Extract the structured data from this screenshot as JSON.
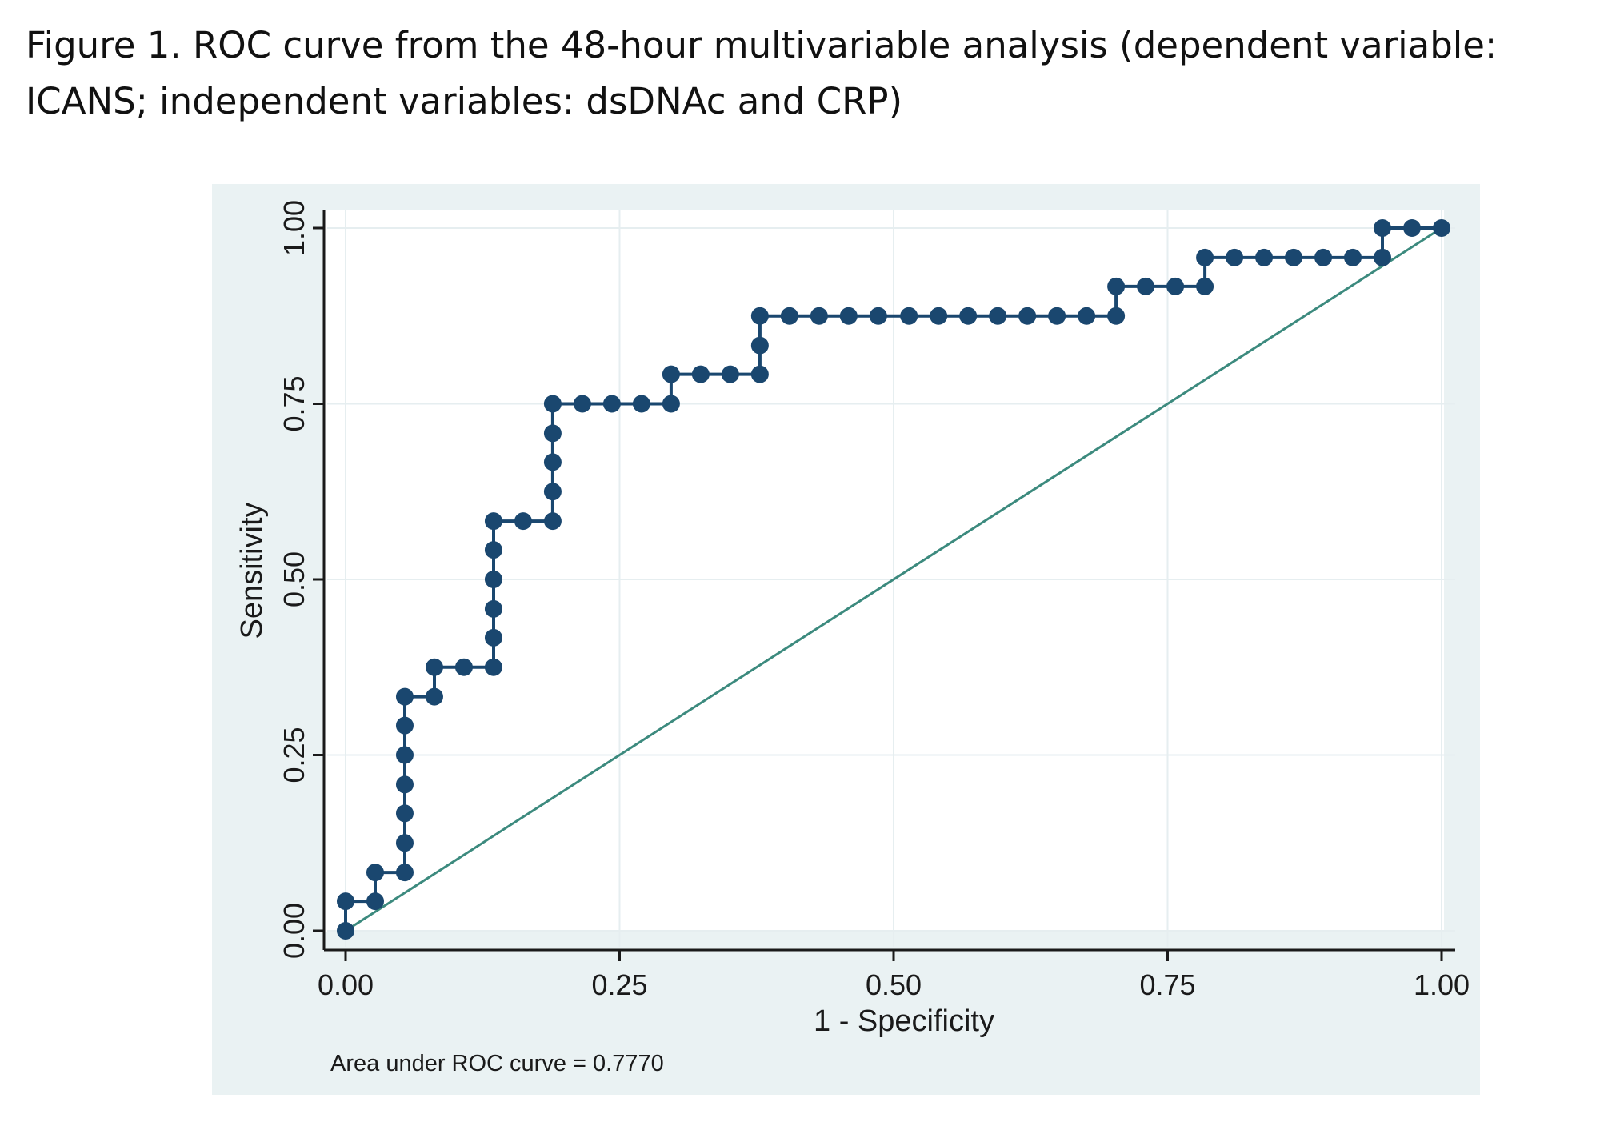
{
  "caption": "Figure 1. ROC curve from the 48-hour multivariable analysis (dependent variable: ICANS; independent variables: dsDNAc and CRP)",
  "colors": {
    "panel_background": "#eaf2f3",
    "plot_background": "#ffffff",
    "roc_curve": "#1a476f",
    "reference_line": "#3c8a7e",
    "grid": "#e6eef0",
    "axis": "#1a1a1a"
  },
  "chart_data": {
    "type": "line",
    "title": "",
    "xlabel": "1 - Specificity",
    "ylabel": "Sensitivity",
    "xlim": [
      0,
      1
    ],
    "ylim": [
      0,
      1
    ],
    "x_ticks": [
      "0.00",
      "0.25",
      "0.50",
      "0.75",
      "1.00"
    ],
    "y_ticks": [
      "0.00",
      "0.25",
      "0.50",
      "0.75",
      "1.00"
    ],
    "grid": true,
    "legend": "none",
    "note": "Area under ROC curve = 0.7770",
    "series": [
      {
        "kind": "step-line-with-markers",
        "points": [
          [
            0.0,
            0.0
          ],
          [
            0.0,
            0.042
          ],
          [
            0.027,
            0.042
          ],
          [
            0.027,
            0.083
          ],
          [
            0.054,
            0.083
          ],
          [
            0.054,
            0.125
          ],
          [
            0.054,
            0.167
          ],
          [
            0.054,
            0.208
          ],
          [
            0.054,
            0.25
          ],
          [
            0.054,
            0.292
          ],
          [
            0.054,
            0.333
          ],
          [
            0.081,
            0.333
          ],
          [
            0.081,
            0.375
          ],
          [
            0.108,
            0.375
          ],
          [
            0.135,
            0.375
          ],
          [
            0.135,
            0.417
          ],
          [
            0.135,
            0.458
          ],
          [
            0.135,
            0.5
          ],
          [
            0.135,
            0.542
          ],
          [
            0.135,
            0.583
          ],
          [
            0.162,
            0.583
          ],
          [
            0.189,
            0.583
          ],
          [
            0.189,
            0.625
          ],
          [
            0.189,
            0.667
          ],
          [
            0.189,
            0.708
          ],
          [
            0.189,
            0.75
          ],
          [
            0.216,
            0.75
          ],
          [
            0.243,
            0.75
          ],
          [
            0.27,
            0.75
          ],
          [
            0.297,
            0.75
          ],
          [
            0.297,
            0.792
          ],
          [
            0.324,
            0.792
          ],
          [
            0.351,
            0.792
          ],
          [
            0.378,
            0.792
          ],
          [
            0.378,
            0.833
          ],
          [
            0.378,
            0.875
          ],
          [
            0.405,
            0.875
          ],
          [
            0.432,
            0.875
          ],
          [
            0.459,
            0.875
          ],
          [
            0.486,
            0.875
          ],
          [
            0.514,
            0.875
          ],
          [
            0.541,
            0.875
          ],
          [
            0.568,
            0.875
          ],
          [
            0.595,
            0.875
          ],
          [
            0.622,
            0.875
          ],
          [
            0.649,
            0.875
          ],
          [
            0.676,
            0.875
          ],
          [
            0.703,
            0.875
          ],
          [
            0.703,
            0.917
          ],
          [
            0.73,
            0.917
          ],
          [
            0.757,
            0.917
          ],
          [
            0.784,
            0.917
          ],
          [
            0.784,
            0.958
          ],
          [
            0.811,
            0.958
          ],
          [
            0.838,
            0.958
          ],
          [
            0.865,
            0.958
          ],
          [
            0.892,
            0.958
          ],
          [
            0.919,
            0.958
          ],
          [
            0.946,
            0.958
          ],
          [
            0.946,
            1.0
          ],
          [
            0.973,
            1.0
          ],
          [
            1.0,
            1.0
          ]
        ]
      },
      {
        "kind": "reference-line",
        "points": [
          [
            0,
            0
          ],
          [
            1,
            1
          ]
        ]
      }
    ]
  }
}
